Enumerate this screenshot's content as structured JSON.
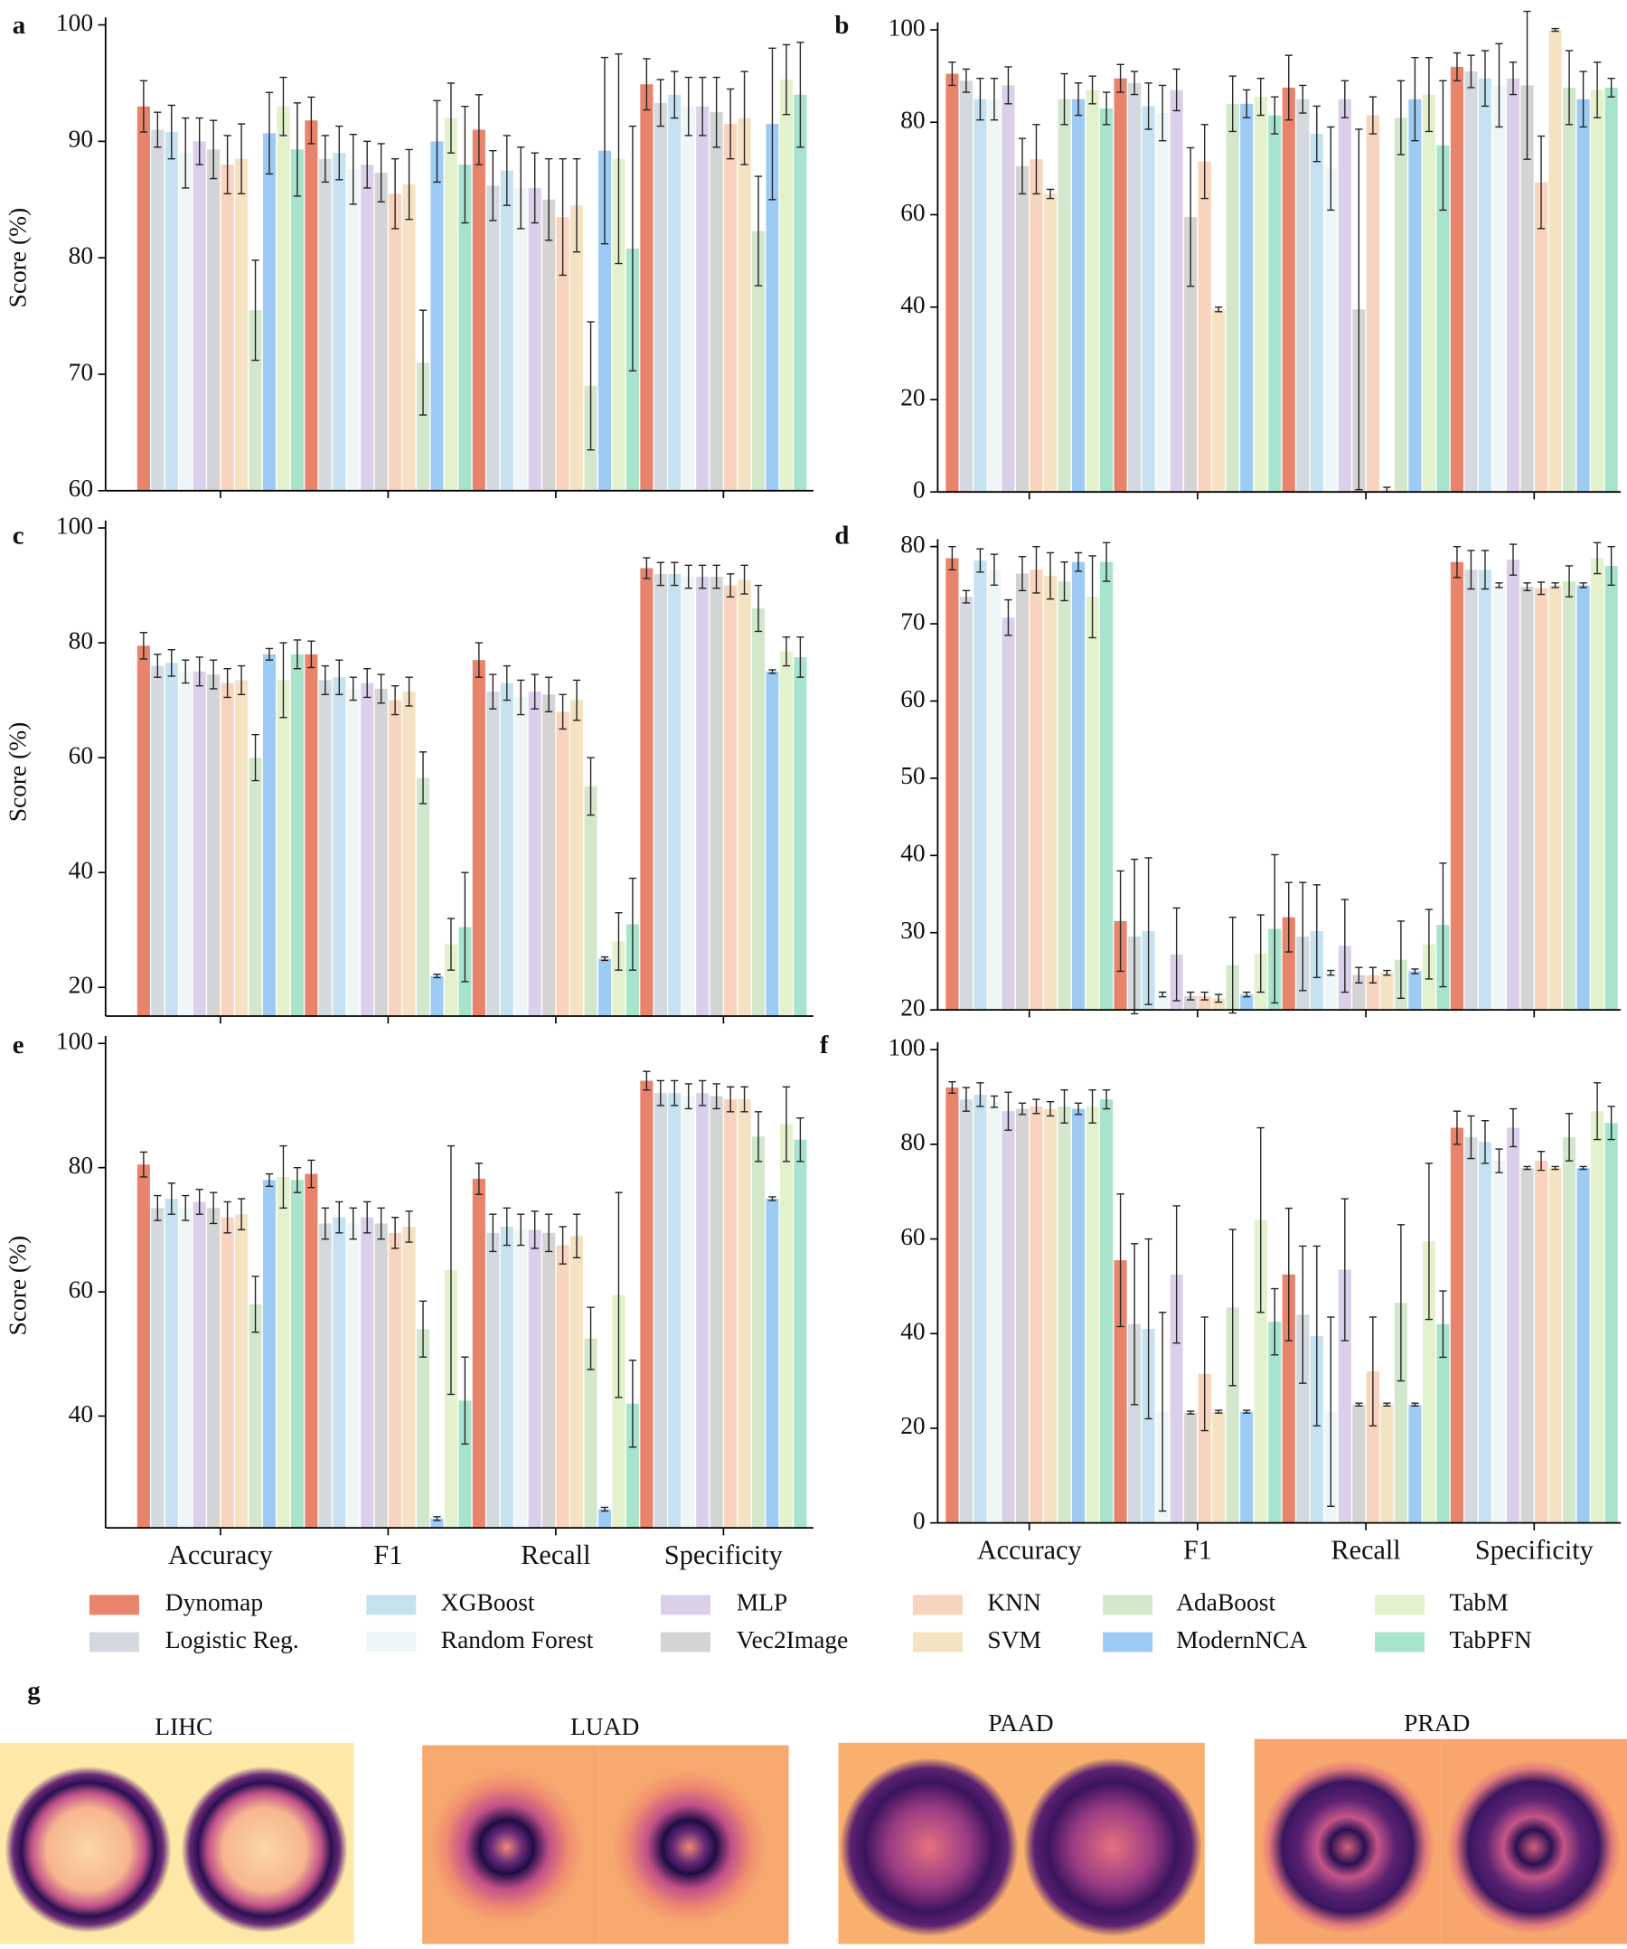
{
  "legend": [
    {
      "name": "Dynomap",
      "color": "#e8836c"
    },
    {
      "name": "Logistic Reg.",
      "color": "#d3d9de"
    },
    {
      "name": "XGBoost",
      "color": "#c6e2f1"
    },
    {
      "name": "Random Forest",
      "color": "#eef6f8"
    },
    {
      "name": "MLP",
      "color": "#dbd0e9"
    },
    {
      "name": "Vec2Image",
      "color": "#d4d4d4"
    },
    {
      "name": "KNN",
      "color": "#f8d3bd"
    },
    {
      "name": "SVM",
      "color": "#f5e2c3"
    },
    {
      "name": "AdaBoost",
      "color": "#d3e7cd"
    },
    {
      "name": "ModernNCA",
      "color": "#9ecbf4"
    },
    {
      "name": "TabM",
      "color": "#e3f1cc"
    },
    {
      "name": "TabPFN",
      "color": "#a8e3cb"
    }
  ],
  "chart_data": [
    {
      "type": "bar",
      "label": "a",
      "ylabel": "Score (%)",
      "categories": [
        null,
        null,
        null,
        null
      ],
      "ylim": [
        60,
        100
      ],
      "yticks": [
        60,
        70,
        80,
        90,
        100
      ],
      "series": [
        {
          "values": [
            93,
            91.8,
            91,
            94.9
          ],
          "errors": [
            2.2,
            2,
            3,
            2.2
          ]
        },
        {
          "values": [
            91,
            88.5,
            86.2,
            93.3
          ],
          "errors": [
            1.5,
            2,
            3,
            2
          ]
        },
        {
          "values": [
            90.8,
            89,
            87.5,
            94
          ],
          "errors": [
            2.3,
            2.3,
            3,
            2
          ]
        },
        {
          "values": [
            89,
            87.6,
            86,
            93
          ],
          "errors": [
            3,
            3,
            3.5,
            2.5
          ]
        },
        {
          "values": [
            90,
            88,
            86,
            93
          ],
          "errors": [
            2,
            2,
            3,
            2.5
          ]
        },
        {
          "values": [
            89.3,
            87.3,
            85,
            92.5
          ],
          "errors": [
            2.5,
            2.5,
            3.5,
            3
          ]
        },
        {
          "values": [
            88,
            85.5,
            83.5,
            91.5
          ],
          "errors": [
            2.5,
            3,
            5,
            3
          ]
        },
        {
          "values": [
            88.5,
            86.3,
            84.5,
            92
          ],
          "errors": [
            3,
            3,
            4,
            4
          ]
        },
        {
          "values": [
            75.5,
            71,
            69,
            82.3
          ],
          "errors": [
            4.3,
            4.5,
            5.5,
            4.7
          ]
        },
        {
          "values": [
            90.7,
            90,
            89.2,
            91.5
          ],
          "errors": [
            3.5,
            3.5,
            8,
            6.5
          ]
        },
        {
          "values": [
            93,
            92,
            88.5,
            95.3
          ],
          "errors": [
            2.5,
            3,
            9,
            3
          ]
        },
        {
          "values": [
            89.3,
            88,
            80.8,
            94
          ],
          "errors": [
            4,
            5,
            10.5,
            4.5
          ]
        }
      ]
    },
    {
      "type": "bar",
      "label": "b",
      "categories": [
        null,
        null,
        null,
        null
      ],
      "ylim": [
        0,
        100
      ],
      "yticks": [
        0,
        20,
        40,
        60,
        80,
        100
      ],
      "series": [
        {
          "values": [
            90.5,
            89.5,
            87.5,
            92
          ],
          "errors": [
            2.5,
            3,
            7,
            3
          ]
        },
        {
          "values": [
            89,
            88.5,
            85,
            91
          ],
          "errors": [
            2.5,
            2.5,
            3,
            3.5
          ]
        },
        {
          "values": [
            85,
            83.5,
            77.5,
            89.5
          ],
          "errors": [
            4.5,
            5,
            6,
            6
          ]
        },
        {
          "values": [
            85,
            82,
            70,
            88
          ],
          "errors": [
            4.5,
            6,
            9,
            9
          ]
        },
        {
          "values": [
            88,
            87,
            85,
            89.5
          ],
          "errors": [
            4,
            4.5,
            4,
            3.5
          ]
        },
        {
          "values": [
            70.5,
            59.5,
            39.5,
            88
          ],
          "errors": [
            6,
            15,
            39,
            16
          ]
        },
        {
          "values": [
            72,
            71.5,
            81.5,
            67
          ],
          "errors": [
            7.5,
            8,
            4,
            10
          ]
        },
        {
          "values": [
            64.5,
            39.5,
            0.5,
            100
          ],
          "errors": [
            1,
            0.5,
            0.5,
            0.3
          ]
        },
        {
          "values": [
            85,
            84,
            81,
            87.5
          ],
          "errors": [
            5.5,
            6,
            8,
            8
          ]
        },
        {
          "values": [
            85,
            84,
            85,
            85
          ],
          "errors": [
            3.5,
            3,
            9,
            6
          ]
        },
        {
          "values": [
            87,
            85.5,
            86,
            87
          ],
          "errors": [
            3,
            4,
            8,
            6
          ]
        },
        {
          "values": [
            83,
            81.5,
            75,
            87.5
          ],
          "errors": [
            3.5,
            4,
            14,
            2
          ]
        }
      ]
    },
    {
      "type": "bar",
      "label": "c",
      "ylabel": "Score (%)",
      "categories": [
        null,
        null,
        null,
        null
      ],
      "ylim": [
        15,
        100
      ],
      "yticks": [
        20,
        40,
        60,
        80,
        100
      ],
      "series": [
        {
          "values": [
            79.5,
            78,
            77,
            93
          ],
          "errors": [
            2.3,
            2.3,
            3,
            1.8
          ]
        },
        {
          "values": [
            76,
            73.5,
            71.5,
            92
          ],
          "errors": [
            2,
            2.5,
            3,
            2
          ]
        },
        {
          "values": [
            76.5,
            74,
            73,
            92
          ],
          "errors": [
            2.3,
            3,
            3,
            2
          ]
        },
        {
          "values": [
            75,
            72,
            70.5,
            91.5
          ],
          "errors": [
            2,
            2,
            3,
            2
          ]
        },
        {
          "values": [
            75,
            73,
            71.5,
            91.5
          ],
          "errors": [
            2.5,
            2.5,
            3,
            2
          ]
        },
        {
          "values": [
            74.5,
            72,
            71,
            91.5
          ],
          "errors": [
            2.5,
            2.5,
            3,
            2
          ]
        },
        {
          "values": [
            73,
            70,
            68,
            90
          ],
          "errors": [
            2.5,
            2.5,
            3,
            2
          ]
        },
        {
          "values": [
            73.5,
            71.5,
            70,
            91
          ],
          "errors": [
            2.5,
            2.5,
            3.5,
            2.5
          ]
        },
        {
          "values": [
            60,
            56.5,
            55,
            86
          ],
          "errors": [
            4,
            4.5,
            5,
            4
          ]
        },
        {
          "values": [
            78,
            22,
            25,
            75
          ],
          "errors": [
            1,
            0.3,
            0.3,
            0.3
          ]
        },
        {
          "values": [
            73.5,
            27.5,
            28,
            78.5
          ],
          "errors": [
            6.5,
            4.5,
            5,
            2.5
          ]
        },
        {
          "values": [
            78,
            30.5,
            31,
            77.5
          ],
          "errors": [
            2.5,
            9.5,
            8,
            3.5
          ]
        }
      ]
    },
    {
      "type": "bar",
      "label": "d",
      "categories": [
        null,
        null,
        null,
        null
      ],
      "ylim": [
        20,
        80
      ],
      "yticks": [
        20,
        30,
        40,
        50,
        60,
        70,
        80
      ],
      "series": [
        {
          "values": [
            78.5,
            31.5,
            32,
            78
          ],
          "errors": [
            1.5,
            6.5,
            4.5,
            2
          ]
        },
        {
          "values": [
            73.5,
            29.5,
            29.5,
            77
          ],
          "errors": [
            0.8,
            10,
            7,
            2.5
          ]
        },
        {
          "values": [
            78.2,
            30.2,
            30.2,
            77
          ],
          "errors": [
            1.5,
            9.5,
            6,
            2.5
          ]
        },
        {
          "values": [
            77,
            22,
            24.8,
            75
          ],
          "errors": [
            2,
            0.3,
            0.3,
            0.3
          ]
        },
        {
          "values": [
            70.8,
            27.2,
            28.3,
            78.3
          ],
          "errors": [
            2.3,
            6,
            6,
            2
          ]
        },
        {
          "values": [
            76.5,
            21.8,
            24.5,
            74.8
          ],
          "errors": [
            2.2,
            0.5,
            1,
            0.5
          ]
        },
        {
          "values": [
            77,
            21.8,
            24.5,
            74.6
          ],
          "errors": [
            3,
            0.5,
            1,
            0.8
          ]
        },
        {
          "values": [
            76.2,
            21.5,
            24.8,
            75
          ],
          "errors": [
            3,
            0.5,
            0.3,
            0.3
          ]
        },
        {
          "values": [
            75.5,
            25.8,
            26.5,
            75.5
          ],
          "errors": [
            2.5,
            6.2,
            5,
            2
          ]
        },
        {
          "values": [
            78,
            22,
            25,
            75
          ],
          "errors": [
            1.2,
            0.3,
            0.3,
            0.3
          ]
        },
        {
          "values": [
            73.5,
            27.3,
            28.5,
            78.5
          ],
          "errors": [
            5.3,
            5,
            4.5,
            2
          ]
        },
        {
          "values": [
            78,
            30.5,
            31,
            77.5
          ],
          "errors": [
            2.5,
            9.6,
            8,
            2.5
          ]
        }
      ]
    },
    {
      "type": "bar",
      "label": "e",
      "ylabel": "Score (%)",
      "categories": [
        "Accuracy",
        "F1",
        "Recall",
        "Specificity"
      ],
      "ylim": [
        22,
        100
      ],
      "yticks": [
        40,
        60,
        80,
        100
      ],
      "series": [
        {
          "values": [
            80.5,
            79,
            78.2,
            94
          ],
          "errors": [
            2,
            2.2,
            2.5,
            1.5
          ]
        },
        {
          "values": [
            73.5,
            71,
            69.5,
            92
          ],
          "errors": [
            2,
            2.5,
            3,
            2
          ]
        },
        {
          "values": [
            75,
            72,
            70.5,
            92
          ],
          "errors": [
            2.5,
            2.5,
            3,
            2
          ]
        },
        {
          "values": [
            73.5,
            71,
            70,
            91.5
          ],
          "errors": [
            2,
            2.5,
            2.5,
            2
          ]
        },
        {
          "values": [
            74.5,
            72,
            70,
            92
          ],
          "errors": [
            2,
            2.5,
            3,
            2
          ]
        },
        {
          "values": [
            73.5,
            71,
            69.5,
            91.5
          ],
          "errors": [
            2.5,
            2.5,
            3,
            2
          ]
        },
        {
          "values": [
            72,
            69.5,
            67.5,
            91
          ],
          "errors": [
            2.5,
            2.5,
            3,
            2
          ]
        },
        {
          "values": [
            72.5,
            70.5,
            69,
            91
          ],
          "errors": [
            2.5,
            2.5,
            3.5,
            2
          ]
        },
        {
          "values": [
            58,
            54,
            52.5,
            85
          ],
          "errors": [
            4.5,
            4.5,
            5,
            4
          ]
        },
        {
          "values": [
            78,
            23.5,
            25,
            75
          ],
          "errors": [
            1,
            0.3,
            0.3,
            0.3
          ]
        },
        {
          "values": [
            78.5,
            63.5,
            59.5,
            87
          ],
          "errors": [
            5,
            20,
            16.5,
            6
          ]
        },
        {
          "values": [
            78,
            42.5,
            42,
            84.5
          ],
          "errors": [
            2,
            7,
            7,
            3.5
          ]
        }
      ]
    },
    {
      "type": "bar",
      "label": "f",
      "categories": [
        "Accuracy",
        "F1",
        "Recall",
        "Specificity"
      ],
      "ylim": [
        0,
        100
      ],
      "yticks": [
        0,
        20,
        40,
        60,
        80,
        100
      ],
      "series": [
        {
          "values": [
            92,
            55.5,
            52.5,
            83.5
          ],
          "errors": [
            1.2,
            14,
            14,
            3.5
          ]
        },
        {
          "values": [
            89.5,
            42,
            44,
            81.5
          ],
          "errors": [
            2.5,
            17,
            14.5,
            4.5
          ]
        },
        {
          "values": [
            90.5,
            41,
            39.5,
            80.5
          ],
          "errors": [
            2.5,
            19,
            19,
            4.5
          ]
        },
        {
          "values": [
            89,
            23.5,
            23.5,
            76.5
          ],
          "errors": [
            1.2,
            21,
            20,
            2.5
          ]
        },
        {
          "values": [
            87,
            52.5,
            53.5,
            83.5
          ],
          "errors": [
            4,
            14.5,
            15,
            4
          ]
        },
        {
          "values": [
            87.5,
            23.3,
            25,
            75
          ],
          "errors": [
            1.2,
            0.3,
            0.3,
            0.3
          ]
        },
        {
          "values": [
            88,
            31.5,
            32,
            76.5
          ],
          "errors": [
            1.5,
            12,
            11.5,
            2
          ]
        },
        {
          "values": [
            87.5,
            23.5,
            25,
            75
          ],
          "errors": [
            1.5,
            0.3,
            0.3,
            0.3
          ]
        },
        {
          "values": [
            88,
            45.5,
            46.5,
            81.5
          ],
          "errors": [
            3.5,
            16.5,
            16.5,
            5
          ]
        },
        {
          "values": [
            87.5,
            23.5,
            25,
            75
          ],
          "errors": [
            1.2,
            0.3,
            0.3,
            0.3
          ]
        },
        {
          "values": [
            88,
            64,
            59.5,
            87
          ],
          "errors": [
            3.5,
            19.5,
            16.5,
            6
          ]
        },
        {
          "values": [
            89.5,
            42.5,
            42,
            84.5
          ],
          "errors": [
            2,
            7,
            7,
            3.5
          ]
        }
      ]
    }
  ],
  "panel_g": {
    "label": "g",
    "titles": [
      "LIHC",
      "LUAD",
      "PAAD",
      "PRAD"
    ]
  }
}
